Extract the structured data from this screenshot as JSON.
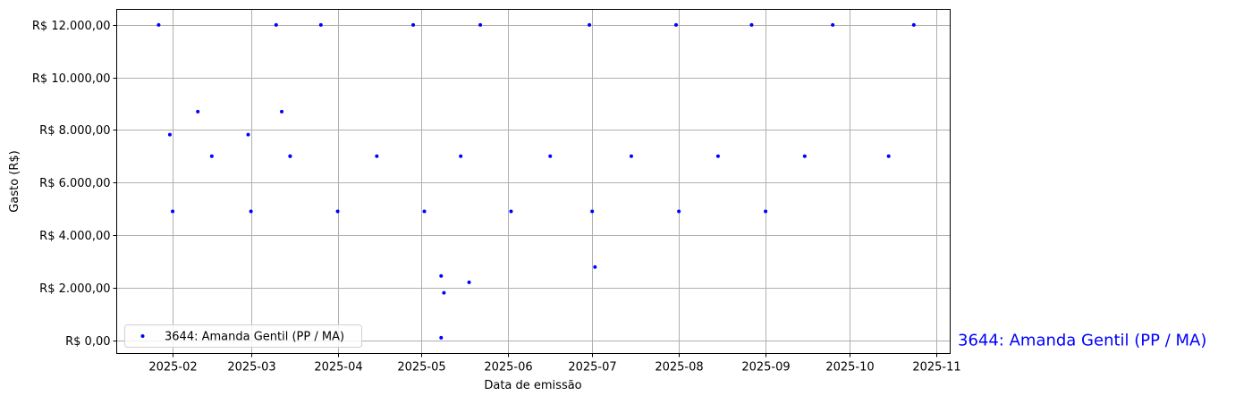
{
  "chart_data": {
    "type": "scatter",
    "title": "",
    "xlabel": "Data de emissão",
    "ylabel": "Gasto (R$)",
    "xlim": [
      "2025-01-12",
      "2025-11-06"
    ],
    "ylim": [
      -510,
      12590
    ],
    "grid": true,
    "legend_placement": "lower-left",
    "x_ticks": [
      "2025-02-01",
      "2025-03-01",
      "2025-04-01",
      "2025-05-01",
      "2025-06-01",
      "2025-07-01",
      "2025-08-01",
      "2025-09-01",
      "2025-10-01",
      "2025-11-01"
    ],
    "x_tick_labels": [
      "2025-02",
      "2025-03",
      "2025-04",
      "2025-05",
      "2025-06",
      "2025-07",
      "2025-08",
      "2025-09",
      "2025-10",
      "2025-11"
    ],
    "y_ticks": [
      0,
      2000,
      4000,
      6000,
      8000,
      10000,
      12000
    ],
    "y_tick_labels": [
      "R$ 0,00",
      "R$ 2.000,00",
      "R$ 4.000,00",
      "R$ 6.000,00",
      "R$ 8.000,00",
      "R$ 10.000,00",
      "R$ 12.000,00"
    ],
    "series": [
      {
        "name": "3644: Amanda Gentil (PP / MA)",
        "color": "#0000ff",
        "points": [
          {
            "x": "2025-01-27",
            "y": 12000
          },
          {
            "x": "2025-01-31",
            "y": 7820
          },
          {
            "x": "2025-02-01",
            "y": 4900
          },
          {
            "x": "2025-02-10",
            "y": 8700
          },
          {
            "x": "2025-02-15",
            "y": 7000
          },
          {
            "x": "2025-02-28",
            "y": 7820
          },
          {
            "x": "2025-03-01",
            "y": 4900
          },
          {
            "x": "2025-03-10",
            "y": 12000
          },
          {
            "x": "2025-03-12",
            "y": 8700
          },
          {
            "x": "2025-03-15",
            "y": 7000
          },
          {
            "x": "2025-03-15",
            "y": 7000
          },
          {
            "x": "2025-03-26",
            "y": 12000
          },
          {
            "x": "2025-04-01",
            "y": 4900
          },
          {
            "x": "2025-04-15",
            "y": 7000
          },
          {
            "x": "2025-04-28",
            "y": 12000
          },
          {
            "x": "2025-05-02",
            "y": 4900
          },
          {
            "x": "2025-05-08",
            "y": 2440
          },
          {
            "x": "2025-05-08",
            "y": 90
          },
          {
            "x": "2025-05-09",
            "y": 1800
          },
          {
            "x": "2025-05-15",
            "y": 7000
          },
          {
            "x": "2025-05-18",
            "y": 2200
          },
          {
            "x": "2025-05-22",
            "y": 12000
          },
          {
            "x": "2025-06-02",
            "y": 4900
          },
          {
            "x": "2025-06-16",
            "y": 7000
          },
          {
            "x": "2025-06-30",
            "y": 12000
          },
          {
            "x": "2025-07-01",
            "y": 4900
          },
          {
            "x": "2025-07-02",
            "y": 2780
          },
          {
            "x": "2025-07-15",
            "y": 7000
          },
          {
            "x": "2025-07-31",
            "y": 12000
          },
          {
            "x": "2025-08-01",
            "y": 4900
          },
          {
            "x": "2025-08-15",
            "y": 7000
          },
          {
            "x": "2025-08-27",
            "y": 12000
          },
          {
            "x": "2025-09-01",
            "y": 4900
          },
          {
            "x": "2025-09-15",
            "y": 7000
          },
          {
            "x": "2025-09-25",
            "y": 12000
          },
          {
            "x": "2025-10-15",
            "y": 7000
          },
          {
            "x": "2025-10-24",
            "y": 12000
          }
        ]
      }
    ],
    "annotation": "3644: Amanda Gentil (PP / MA)"
  }
}
